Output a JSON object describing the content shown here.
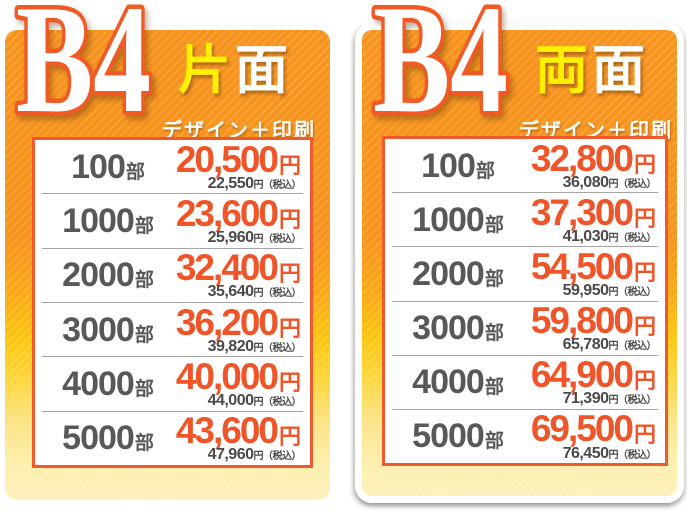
{
  "shared": {
    "unit_suffix": "部",
    "yen_suffix": "円",
    "tax_suffix": "円（税込）"
  },
  "colors": {
    "card_orange_top": "#f7941e",
    "card_yellow_bottom": "#fdf1bb",
    "price_orange": "#ef5528",
    "highlight_yellow": "#fff100",
    "quantity_gray": "#595757",
    "panel_border_orange": "#f0592b"
  },
  "cards": [
    {
      "size_label": "B4",
      "side_highlight": "片",
      "side_rest": "面",
      "subtitle": "デザイン＋印刷",
      "rows": [
        {
          "qty": "100",
          "price": "20,500",
          "tax_price": "22,550"
        },
        {
          "qty": "1000",
          "price": "23,600",
          "tax_price": "25,960"
        },
        {
          "qty": "2000",
          "price": "32,400",
          "tax_price": "35,640"
        },
        {
          "qty": "3000",
          "price": "36,200",
          "tax_price": "39,820"
        },
        {
          "qty": "4000",
          "price": "40,000",
          "tax_price": "44,000"
        },
        {
          "qty": "5000",
          "price": "43,600",
          "tax_price": "47,960"
        }
      ]
    },
    {
      "size_label": "B4",
      "side_highlight": "両",
      "side_rest": "面",
      "subtitle": "デザイン＋印刷",
      "rows": [
        {
          "qty": "100",
          "price": "32,800",
          "tax_price": "36,080"
        },
        {
          "qty": "1000",
          "price": "37,300",
          "tax_price": "41,030"
        },
        {
          "qty": "2000",
          "price": "54,500",
          "tax_price": "59,950"
        },
        {
          "qty": "3000",
          "price": "59,800",
          "tax_price": "65,780"
        },
        {
          "qty": "4000",
          "price": "64,900",
          "tax_price": "71,390"
        },
        {
          "qty": "5000",
          "price": "69,500",
          "tax_price": "76,450"
        }
      ]
    }
  ]
}
